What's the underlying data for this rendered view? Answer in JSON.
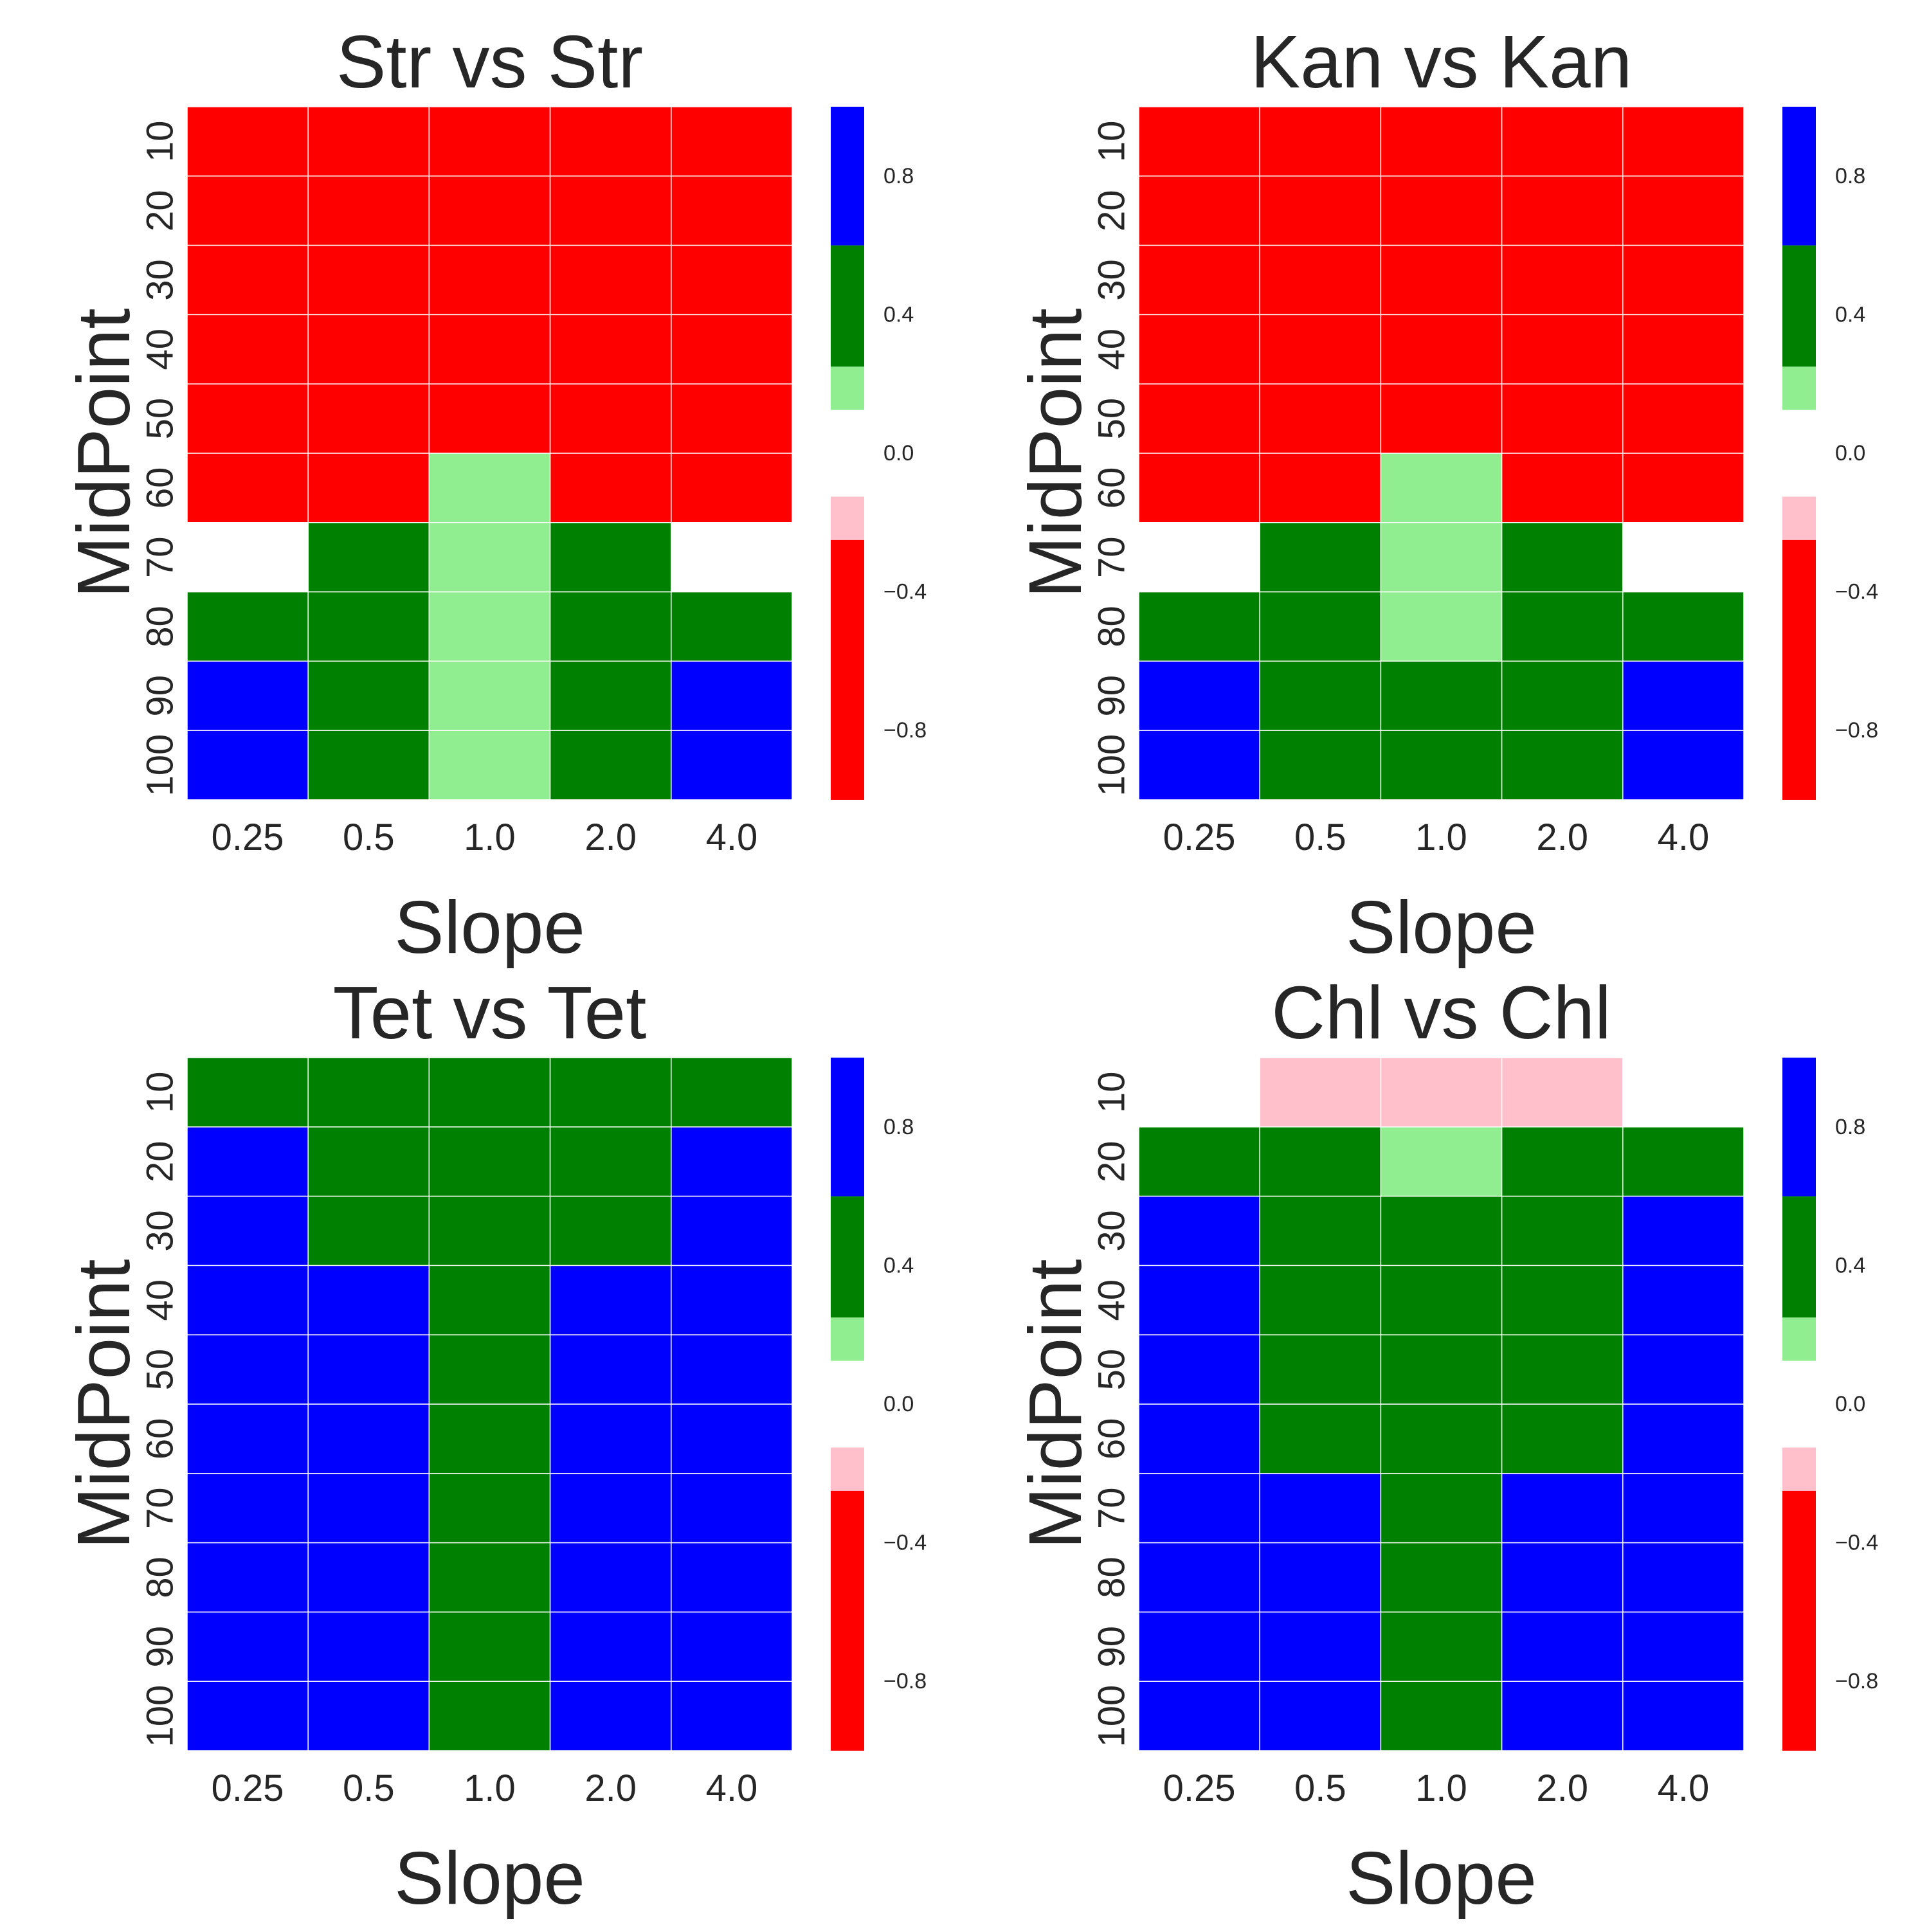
{
  "chart_data": [
    {
      "type": "heatmap",
      "title": "Str vs Str",
      "xlabel": "Slope",
      "ylabel": "MidPoint",
      "x": [
        "0.25",
        "0.5",
        "1.0",
        "2.0",
        "4.0"
      ],
      "y": [
        "10",
        "20",
        "30",
        "40",
        "50",
        "60",
        "70",
        "80",
        "90",
        "100"
      ],
      "values": [
        [
          -1,
          -1,
          -1,
          -1,
          -1
        ],
        [
          -1,
          -1,
          -1,
          -1,
          -1
        ],
        [
          -1,
          -1,
          -1,
          -1,
          -1
        ],
        [
          -1,
          -1,
          -1,
          -1,
          -1
        ],
        [
          -1,
          -1,
          -1,
          -1,
          -1
        ],
        [
          -1,
          -1,
          0.15,
          -1,
          -1
        ],
        [
          0,
          0.4,
          0.15,
          0.4,
          0
        ],
        [
          0.4,
          0.4,
          0.15,
          0.4,
          0.4
        ],
        [
          0.8,
          0.4,
          0.15,
          0.4,
          0.8
        ],
        [
          0.8,
          0.4,
          0.15,
          0.4,
          0.8
        ]
      ],
      "colorbar": {
        "ticks": [
          "0.8",
          "0.4",
          "0.0",
          "−0.4",
          "−0.8"
        ]
      }
    },
    {
      "type": "heatmap",
      "title": "Kan vs Kan",
      "xlabel": "Slope",
      "ylabel": "MidPoint",
      "x": [
        "0.25",
        "0.5",
        "1.0",
        "2.0",
        "4.0"
      ],
      "y": [
        "10",
        "20",
        "30",
        "40",
        "50",
        "60",
        "70",
        "80",
        "90",
        "100"
      ],
      "values": [
        [
          -1,
          -1,
          -1,
          -1,
          -1
        ],
        [
          -1,
          -1,
          -1,
          -1,
          -1
        ],
        [
          -1,
          -1,
          -1,
          -1,
          -1
        ],
        [
          -1,
          -1,
          -1,
          -1,
          -1
        ],
        [
          -1,
          -1,
          -1,
          -1,
          -1
        ],
        [
          -1,
          -1,
          0.15,
          -1,
          -1
        ],
        [
          0,
          0.4,
          0.15,
          0.4,
          0
        ],
        [
          0.4,
          0.4,
          0.15,
          0.4,
          0.4
        ],
        [
          0.8,
          0.4,
          0.4,
          0.4,
          0.8
        ],
        [
          0.8,
          0.4,
          0.4,
          0.4,
          0.8
        ]
      ],
      "colorbar": {
        "ticks": [
          "0.8",
          "0.4",
          "0.0",
          "−0.4",
          "−0.8"
        ]
      }
    },
    {
      "type": "heatmap",
      "title": "Tet vs Tet",
      "xlabel": "Slope",
      "ylabel": "MidPoint",
      "x": [
        "0.25",
        "0.5",
        "1.0",
        "2.0",
        "4.0"
      ],
      "y": [
        "10",
        "20",
        "30",
        "40",
        "50",
        "60",
        "70",
        "80",
        "90",
        "100"
      ],
      "values": [
        [
          0.4,
          0.4,
          0.4,
          0.4,
          0.4
        ],
        [
          0.8,
          0.4,
          0.4,
          0.4,
          0.8
        ],
        [
          0.8,
          0.4,
          0.4,
          0.4,
          0.8
        ],
        [
          0.8,
          0.8,
          0.4,
          0.8,
          0.8
        ],
        [
          0.8,
          0.8,
          0.4,
          0.8,
          0.8
        ],
        [
          0.8,
          0.8,
          0.4,
          0.8,
          0.8
        ],
        [
          0.8,
          0.8,
          0.4,
          0.8,
          0.8
        ],
        [
          0.8,
          0.8,
          0.4,
          0.8,
          0.8
        ],
        [
          0.8,
          0.8,
          0.4,
          0.8,
          0.8
        ],
        [
          0.8,
          0.8,
          0.4,
          0.8,
          0.8
        ]
      ],
      "colorbar": {
        "ticks": [
          "0.8",
          "0.4",
          "0.0",
          "−0.4",
          "−0.8"
        ]
      }
    },
    {
      "type": "heatmap",
      "title": "Chl vs Chl",
      "xlabel": "Slope",
      "ylabel": "MidPoint",
      "x": [
        "0.25",
        "0.5",
        "1.0",
        "2.0",
        "4.0"
      ],
      "y": [
        "10",
        "20",
        "30",
        "40",
        "50",
        "60",
        "70",
        "80",
        "90",
        "100"
      ],
      "values": [
        [
          0,
          -0.15,
          -0.15,
          -0.15,
          0
        ],
        [
          0.4,
          0.4,
          0.15,
          0.4,
          0.4
        ],
        [
          0.8,
          0.4,
          0.4,
          0.4,
          0.8
        ],
        [
          0.8,
          0.4,
          0.4,
          0.4,
          0.8
        ],
        [
          0.8,
          0.4,
          0.4,
          0.4,
          0.8
        ],
        [
          0.8,
          0.4,
          0.4,
          0.4,
          0.8
        ],
        [
          0.8,
          0.8,
          0.4,
          0.8,
          0.8
        ],
        [
          0.8,
          0.8,
          0.4,
          0.8,
          0.8
        ],
        [
          0.8,
          0.8,
          0.4,
          0.8,
          0.8
        ],
        [
          0.8,
          0.8,
          0.4,
          0.8,
          0.8
        ]
      ],
      "colorbar": {
        "ticks": [
          "0.8",
          "0.4",
          "0.0",
          "−0.4",
          "−0.8"
        ]
      }
    }
  ],
  "colormap": [
    {
      "min": -1.0,
      "max": -0.25,
      "color": "#ff0000"
    },
    {
      "min": -0.25,
      "max": -0.125,
      "color": "#ffc0cb"
    },
    {
      "min": -0.125,
      "max": 0.125,
      "color": "#ffffff"
    },
    {
      "min": 0.125,
      "max": 0.25,
      "color": "#90ee90"
    },
    {
      "min": 0.25,
      "max": 0.6,
      "color": "#008000"
    },
    {
      "min": 0.6,
      "max": 1.0,
      "color": "#0000ff"
    }
  ]
}
